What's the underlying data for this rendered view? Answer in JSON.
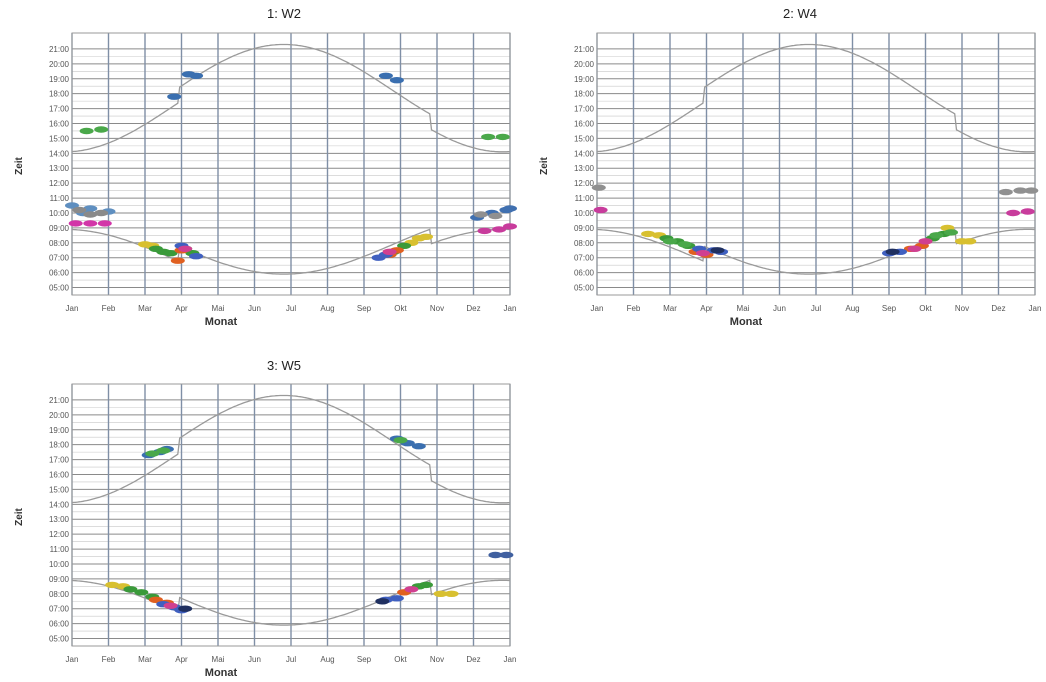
{
  "chart_data": [
    {
      "type": "scatter",
      "title": "1: W2",
      "xlabel": "Monat",
      "ylabel": "Zeit",
      "categories": [
        "Jan",
        "Feb",
        "Mar",
        "Apr",
        "Mai",
        "Jun",
        "Jul",
        "Aug",
        "Sep",
        "Okt",
        "Nov",
        "Dez",
        "Jan"
      ],
      "yticks": [
        "21:00",
        "20:00",
        "19:00",
        "18:00",
        "17:00",
        "16:00",
        "15:00",
        "14:00",
        "13:00",
        "12:00",
        "11:00",
        "10:00",
        "09:00",
        "08:00",
        "07:00",
        "06:00",
        "05:00"
      ],
      "ylim": [
        4.5,
        21.8
      ],
      "grid": true,
      "series": [
        {
          "color": "#5f8fc0",
          "points": [
            [
              0.0,
              10.5
            ],
            [
              0.5,
              10.3
            ],
            [
              1.0,
              10.1
            ],
            [
              0.3,
              10.0
            ]
          ]
        },
        {
          "color": "#8a8a8a",
          "points": [
            [
              0.2,
              10.2
            ],
            [
              0.8,
              10.0
            ],
            [
              0.5,
              9.9
            ]
          ]
        },
        {
          "color": "#d236a8",
          "points": [
            [
              0.1,
              9.3
            ],
            [
              0.5,
              9.3
            ],
            [
              0.9,
              9.3
            ]
          ]
        },
        {
          "color": "#4aa84a",
          "points": [
            [
              0.4,
              15.5
            ],
            [
              0.8,
              15.6
            ],
            [
              11.4,
              15.1
            ],
            [
              11.8,
              15.1
            ]
          ]
        },
        {
          "color": "#3a6fb0",
          "points": [
            [
              2.8,
              17.8
            ],
            [
              3.2,
              19.3
            ],
            [
              3.4,
              19.2
            ],
            [
              8.6,
              19.2
            ],
            [
              8.9,
              18.9
            ]
          ]
        },
        {
          "color": "#d8c030",
          "points": [
            [
              2.0,
              7.9
            ],
            [
              2.2,
              7.8
            ],
            [
              9.3,
              8.0
            ],
            [
              9.5,
              8.3
            ],
            [
              9.7,
              8.4
            ]
          ]
        },
        {
          "color": "#3a9a3a",
          "points": [
            [
              2.3,
              7.6
            ],
            [
              2.5,
              7.4
            ],
            [
              2.7,
              7.3
            ],
            [
              3.1,
              7.6
            ],
            [
              3.3,
              7.3
            ],
            [
              8.8,
              7.4
            ],
            [
              9.1,
              7.8
            ]
          ]
        },
        {
          "color": "#e06020",
          "points": [
            [
              2.9,
              6.8
            ],
            [
              3.0,
              7.5
            ],
            [
              8.7,
              7.2
            ],
            [
              8.9,
              7.5
            ]
          ]
        },
        {
          "color": "#4060c0",
          "points": [
            [
              3.0,
              7.8
            ],
            [
              3.4,
              7.1
            ],
            [
              8.4,
              7.0
            ],
            [
              8.6,
              7.2
            ]
          ]
        },
        {
          "color": "#d04090",
          "points": [
            [
              3.1,
              7.6
            ],
            [
              8.7,
              7.4
            ]
          ]
        },
        {
          "color": "#4070b0",
          "points": [
            [
              11.1,
              9.7
            ],
            [
              11.5,
              10.0
            ],
            [
              11.9,
              10.2
            ],
            [
              12.0,
              10.3
            ]
          ]
        },
        {
          "color": "#909090",
          "points": [
            [
              11.2,
              9.9
            ],
            [
              11.6,
              9.8
            ]
          ]
        },
        {
          "color": "#c83c9c",
          "points": [
            [
              11.3,
              8.8
            ],
            [
              11.7,
              8.9
            ],
            [
              12.0,
              9.1
            ]
          ]
        }
      ]
    },
    {
      "type": "scatter",
      "title": "2: W4",
      "xlabel": "Monat",
      "ylabel": "Zeit",
      "categories": [
        "Jan",
        "Feb",
        "Mar",
        "Apr",
        "Mai",
        "Jun",
        "Jul",
        "Aug",
        "Sep",
        "Okt",
        "Nov",
        "Dez",
        "Jan"
      ],
      "yticks": [
        "21:00",
        "20:00",
        "19:00",
        "18:00",
        "17:00",
        "16:00",
        "15:00",
        "14:00",
        "13:00",
        "12:00",
        "11:00",
        "10:00",
        "09:00",
        "08:00",
        "07:00",
        "06:00",
        "05:00"
      ],
      "ylim": [
        4.5,
        21.8
      ],
      "grid": true,
      "series": [
        {
          "color": "#909090",
          "points": [
            [
              0.05,
              11.7
            ],
            [
              11.2,
              11.4
            ],
            [
              11.6,
              11.5
            ],
            [
              11.9,
              11.5
            ]
          ]
        },
        {
          "color": "#c83c9c",
          "points": [
            [
              0.1,
              10.2
            ],
            [
              11.4,
              10.0
            ],
            [
              11.8,
              10.1
            ]
          ]
        },
        {
          "color": "#d8c030",
          "points": [
            [
              1.4,
              8.6
            ],
            [
              1.7,
              8.5
            ],
            [
              9.6,
              9.0
            ],
            [
              10.0,
              8.1
            ],
            [
              10.2,
              8.1
            ]
          ]
        },
        {
          "color": "#3a9a3a",
          "points": [
            [
              1.9,
              8.3
            ],
            [
              2.2,
              8.1
            ],
            [
              2.5,
              7.8
            ],
            [
              9.2,
              8.3
            ],
            [
              9.5,
              8.6
            ]
          ]
        },
        {
          "color": "#4aa84a",
          "points": [
            [
              2.0,
              8.1
            ],
            [
              2.4,
              7.9
            ],
            [
              9.3,
              8.5
            ],
            [
              9.7,
              8.7
            ]
          ]
        },
        {
          "color": "#e06020",
          "points": [
            [
              2.7,
              7.4
            ],
            [
              3.0,
              7.2
            ],
            [
              8.6,
              7.6
            ],
            [
              8.9,
              7.8
            ]
          ]
        },
        {
          "color": "#4060c0",
          "points": [
            [
              2.8,
              7.6
            ],
            [
              3.2,
              7.5
            ],
            [
              3.4,
              7.4
            ],
            [
              8.0,
              7.3
            ],
            [
              8.3,
              7.4
            ]
          ]
        },
        {
          "color": "#203060",
          "points": [
            [
              3.3,
              7.5
            ],
            [
              8.1,
              7.4
            ]
          ]
        },
        {
          "color": "#d04090",
          "points": [
            [
              2.9,
              7.3
            ],
            [
              8.7,
              7.6
            ],
            [
              9.0,
              8.1
            ]
          ]
        }
      ]
    },
    {
      "type": "scatter",
      "title": "3: W5",
      "xlabel": "Monat",
      "ylabel": "Zeit",
      "categories": [
        "Jan",
        "Feb",
        "Mar",
        "Apr",
        "Mai",
        "Jun",
        "Jul",
        "Aug",
        "Sep",
        "Okt",
        "Nov",
        "Dez",
        "Jan"
      ],
      "yticks": [
        "21:00",
        "20:00",
        "19:00",
        "18:00",
        "17:00",
        "16:00",
        "15:00",
        "14:00",
        "13:00",
        "12:00",
        "11:00",
        "10:00",
        "09:00",
        "08:00",
        "07:00",
        "06:00",
        "05:00"
      ],
      "ylim": [
        4.5,
        21.8
      ],
      "grid": true,
      "series": [
        {
          "color": "#3a6fb0",
          "points": [
            [
              2.1,
              17.3
            ],
            [
              2.4,
              17.5
            ],
            [
              2.6,
              17.7
            ],
            [
              8.9,
              18.4
            ],
            [
              9.2,
              18.1
            ],
            [
              9.5,
              17.9
            ]
          ]
        },
        {
          "color": "#4aa84a",
          "points": [
            [
              2.2,
              17.4
            ],
            [
              2.5,
              17.6
            ],
            [
              9.0,
              18.3
            ]
          ]
        },
        {
          "color": "#d8c030",
          "points": [
            [
              1.1,
              8.6
            ],
            [
              1.4,
              8.5
            ],
            [
              10.1,
              8.0
            ],
            [
              10.4,
              8.0
            ]
          ]
        },
        {
          "color": "#3a9a3a",
          "points": [
            [
              1.6,
              8.3
            ],
            [
              1.9,
              8.1
            ],
            [
              2.2,
              7.8
            ],
            [
              9.5,
              8.5
            ],
            [
              9.7,
              8.6
            ]
          ]
        },
        {
          "color": "#e06020",
          "points": [
            [
              2.3,
              7.6
            ],
            [
              2.6,
              7.4
            ],
            [
              9.1,
              8.1
            ]
          ]
        },
        {
          "color": "#4060c0",
          "points": [
            [
              2.5,
              7.3
            ],
            [
              2.8,
              7.1
            ],
            [
              3.0,
              6.9
            ],
            [
              8.6,
              7.6
            ],
            [
              8.9,
              7.7
            ]
          ]
        },
        {
          "color": "#d04090",
          "points": [
            [
              2.7,
              7.2
            ],
            [
              9.3,
              8.3
            ]
          ]
        },
        {
          "color": "#203060",
          "points": [
            [
              3.1,
              7.0
            ],
            [
              8.5,
              7.5
            ]
          ]
        },
        {
          "color": "#4060a0",
          "points": [
            [
              11.6,
              10.6
            ],
            [
              11.9,
              10.6
            ]
          ]
        }
      ]
    }
  ]
}
